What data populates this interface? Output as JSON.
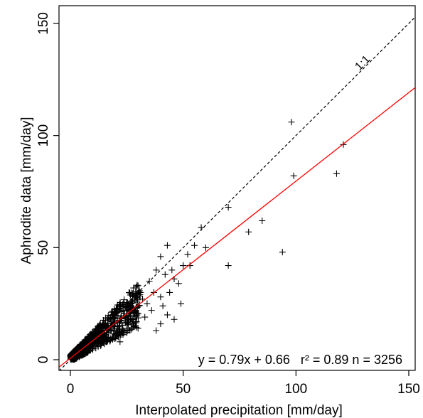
{
  "chart_data": {
    "type": "scatter",
    "title": "",
    "xlabel": "Interpolated precipitation [mm/day]",
    "ylabel": "Aphrodite data [mm/day]",
    "xlim": [
      -5,
      151
    ],
    "ylim": [
      -5,
      152
    ],
    "xticks": [
      0,
      50,
      100,
      150
    ],
    "yticks": [
      0,
      50,
      100,
      150
    ],
    "xtick_labels": [
      "0",
      "50",
      "100",
      "150"
    ],
    "ytick_labels": [
      "0",
      "50",
      "100",
      "150"
    ],
    "grid": false,
    "marker": "plus",
    "point_color": "#000000",
    "identity_line": {
      "slope": 1,
      "intercept": 0,
      "style": "dashed",
      "color": "#000000",
      "label": "1:1"
    },
    "regression_line": {
      "slope": 0.79,
      "intercept": 0.66,
      "style": "solid",
      "color": "#ff0000"
    },
    "annotation": "y = 0.79x + 0.66   r² = 0.89 n = 3256",
    "n_points": 3256,
    "outliers": [
      [
        98,
        106
      ],
      [
        121,
        96
      ],
      [
        118,
        83
      ],
      [
        99,
        82
      ],
      [
        70,
        68
      ],
      [
        85,
        62
      ],
      [
        58,
        59
      ],
      [
        79,
        57
      ],
      [
        94,
        48
      ],
      [
        70,
        42
      ],
      [
        55,
        51
      ],
      [
        60,
        50
      ],
      [
        52,
        47
      ],
      [
        43,
        51
      ],
      [
        40,
        46
      ],
      [
        50,
        42
      ],
      [
        53,
        42
      ],
      [
        45,
        40
      ],
      [
        38,
        40
      ],
      [
        42,
        38
      ],
      [
        46,
        36
      ],
      [
        48,
        34
      ],
      [
        37,
        30
      ],
      [
        44,
        30
      ],
      [
        40,
        28
      ],
      [
        30,
        33
      ],
      [
        35,
        35
      ],
      [
        32,
        27
      ],
      [
        41,
        24
      ],
      [
        49,
        25
      ],
      [
        36,
        22
      ],
      [
        43,
        20
      ],
      [
        46,
        18
      ],
      [
        28,
        32
      ],
      [
        26,
        30
      ],
      [
        33,
        19
      ],
      [
        40,
        16
      ],
      [
        38,
        13
      ],
      [
        30,
        14
      ],
      [
        25,
        12
      ],
      [
        22,
        8
      ],
      [
        34,
        25
      ],
      [
        29,
        22
      ]
    ]
  }
}
